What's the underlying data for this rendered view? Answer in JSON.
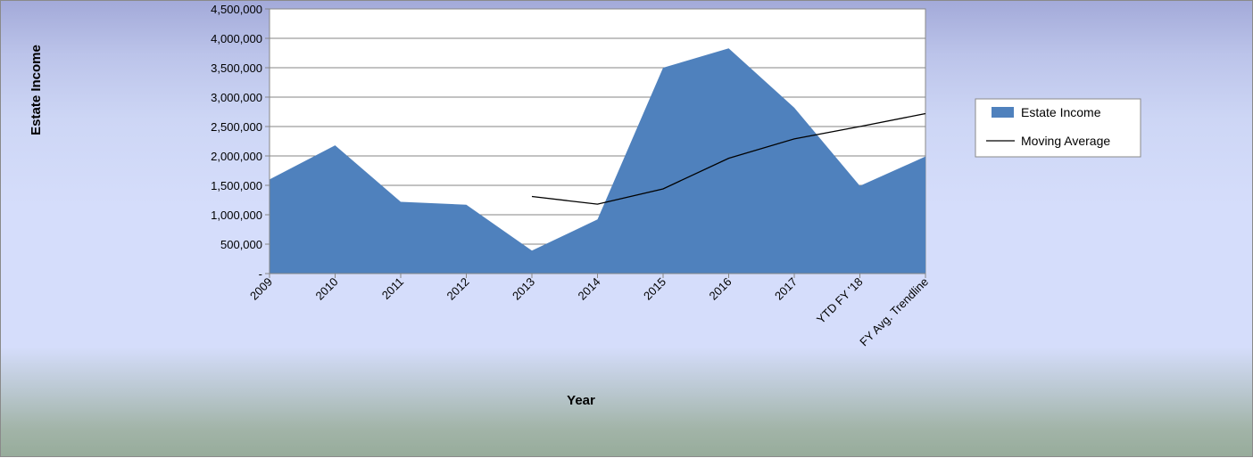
{
  "chart_data": {
    "type": "area",
    "title": "",
    "xlabel": "Year",
    "ylabel": "Estate Income",
    "categories": [
      "2009",
      "2010",
      "2011",
      "2012",
      "2013",
      "2014",
      "2015",
      "2016",
      "2017",
      "YTD FY '18",
      "FY Avg. Trendline"
    ],
    "series": [
      {
        "name": "Estate Income",
        "type": "area",
        "color": "#4f81bd",
        "values": [
          1600000,
          2180000,
          1220000,
          1170000,
          390000,
          920000,
          3500000,
          3830000,
          2820000,
          1490000,
          1990000
        ]
      },
      {
        "name": "Moving Average",
        "type": "line",
        "color": "#000000",
        "values": [
          null,
          null,
          null,
          null,
          1310000,
          1180000,
          1440000,
          1960000,
          2290000,
          2500000,
          2720000
        ]
      }
    ],
    "ylim": [
      0,
      4500000
    ],
    "yticks": [
      0,
      500000,
      1000000,
      1500000,
      2000000,
      2500000,
      3000000,
      3500000,
      4000000,
      4500000
    ],
    "ytick_labels": [
      "-",
      "500,000",
      "1,000,000",
      "1,500,000",
      "2,000,000",
      "2,500,000",
      "3,000,000",
      "3,500,000",
      "4,000,000",
      "4,500,000"
    ],
    "grid": true,
    "legend_position": "right"
  }
}
